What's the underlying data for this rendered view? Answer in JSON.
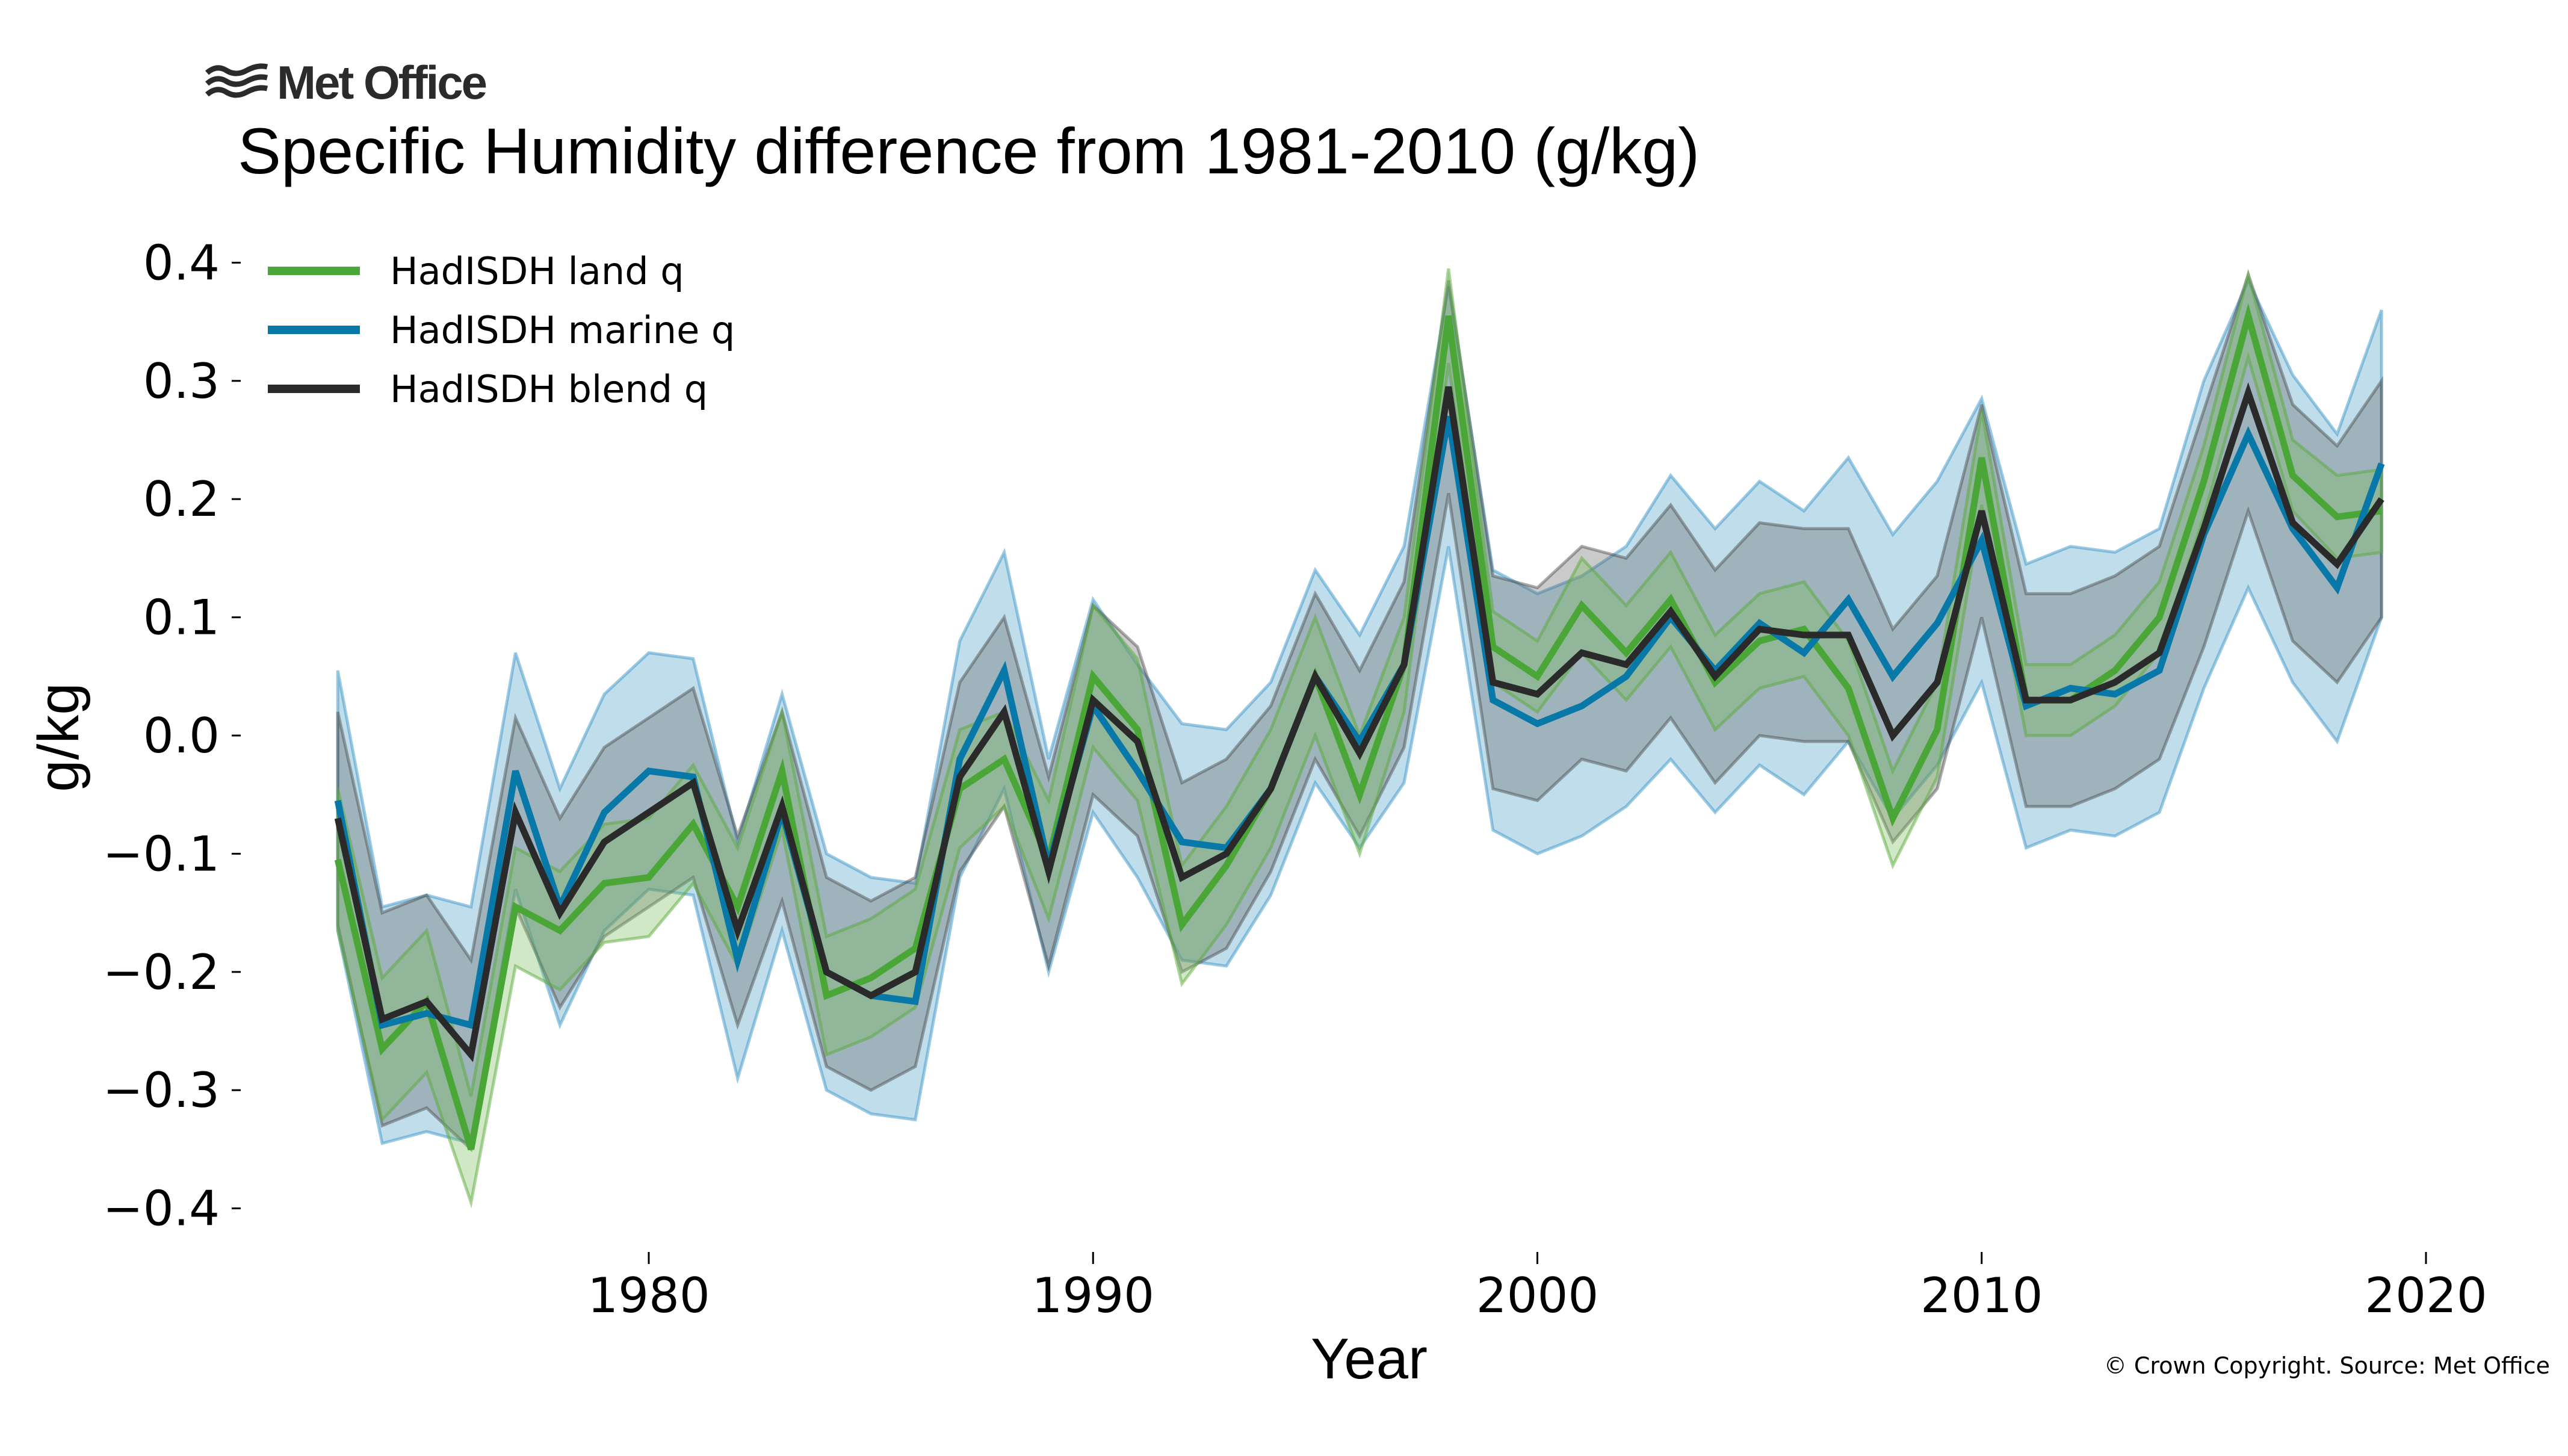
{
  "brand": {
    "name": "Met Office",
    "logo_icon": "met-office-waves-icon"
  },
  "copyright": "© Crown Copyright. Source: Met Office",
  "chart_data": {
    "type": "line",
    "title": "Specific Humidity difference from 1981-2010 (g/kg)",
    "xlabel": "Year",
    "ylabel": "g/kg",
    "xlim": [
      1971,
      2021.5
    ],
    "ylim": [
      -0.43,
      0.42
    ],
    "xticks": [
      1980,
      1990,
      2000,
      2010,
      2020
    ],
    "yticks": [
      0.4,
      0.3,
      0.2,
      0.1,
      0.0,
      -0.1,
      -0.2,
      -0.3,
      -0.4
    ],
    "ytick_labels": [
      "0.4",
      "0.3",
      "0.2",
      "0.1",
      "0.0",
      "−0.1",
      "−0.2",
      "−0.3",
      "−0.4"
    ],
    "grid": false,
    "legend_position": "top-left",
    "x": [
      1973,
      1974,
      1975,
      1976,
      1977,
      1978,
      1979,
      1980,
      1981,
      1982,
      1983,
      1984,
      1985,
      1986,
      1987,
      1988,
      1989,
      1990,
      1991,
      1992,
      1993,
      1994,
      1995,
      1996,
      1997,
      1998,
      1999,
      2000,
      2001,
      2002,
      2003,
      2004,
      2005,
      2006,
      2007,
      2008,
      2009,
      2010,
      2011,
      2012,
      2013,
      2014,
      2015,
      2016,
      2017,
      2018,
      2019
    ],
    "series": [
      {
        "name": "HadISDH land q",
        "color": "#4aa636",
        "values": [
          -0.105,
          -0.265,
          -0.225,
          -0.35,
          -0.145,
          -0.165,
          -0.125,
          -0.12,
          -0.075,
          -0.145,
          -0.03,
          -0.22,
          -0.205,
          -0.18,
          -0.045,
          -0.02,
          -0.105,
          0.05,
          0.005,
          -0.16,
          -0.11,
          -0.045,
          0.05,
          -0.05,
          0.06,
          0.355,
          0.075,
          0.05,
          0.11,
          0.07,
          0.115,
          0.045,
          0.08,
          0.09,
          0.04,
          -0.07,
          0.005,
          0.235,
          0.03,
          0.03,
          0.055,
          0.1,
          0.215,
          0.355,
          0.22,
          0.185,
          0.19
        ],
        "band_halfwidth": [
          0.06,
          0.06,
          0.06,
          0.045,
          0.05,
          0.05,
          0.05,
          0.05,
          0.05,
          0.05,
          0.05,
          0.05,
          0.05,
          0.05,
          0.05,
          0.04,
          0.05,
          0.06,
          0.06,
          0.05,
          0.05,
          0.05,
          0.05,
          0.05,
          0.04,
          0.04,
          0.03,
          0.03,
          0.04,
          0.04,
          0.04,
          0.04,
          0.04,
          0.04,
          0.04,
          0.04,
          0.04,
          0.04,
          0.03,
          0.03,
          0.03,
          0.03,
          0.03,
          0.035,
          0.03,
          0.035,
          0.035
        ]
      },
      {
        "name": "HadISDH marine q",
        "color": "#0878a8",
        "values": [
          -0.055,
          -0.245,
          -0.235,
          -0.245,
          -0.03,
          -0.145,
          -0.065,
          -0.03,
          -0.035,
          -0.19,
          -0.065,
          -0.2,
          -0.22,
          -0.225,
          -0.02,
          0.055,
          -0.11,
          0.025,
          -0.03,
          -0.09,
          -0.095,
          -0.045,
          0.05,
          -0.005,
          0.06,
          0.27,
          0.03,
          0.01,
          0.025,
          0.05,
          0.1,
          0.055,
          0.095,
          0.07,
          0.115,
          0.05,
          0.095,
          0.165,
          0.025,
          0.04,
          0.035,
          0.055,
          0.17,
          0.255,
          0.175,
          0.125,
          0.23
        ],
        "band_halfwidth": [
          0.11,
          0.1,
          0.1,
          0.1,
          0.1,
          0.1,
          0.1,
          0.1,
          0.1,
          0.1,
          0.1,
          0.1,
          0.1,
          0.1,
          0.1,
          0.1,
          0.09,
          0.09,
          0.09,
          0.1,
          0.1,
          0.09,
          0.09,
          0.09,
          0.1,
          0.11,
          0.11,
          0.11,
          0.11,
          0.11,
          0.12,
          0.12,
          0.12,
          0.12,
          0.12,
          0.12,
          0.12,
          0.12,
          0.12,
          0.12,
          0.12,
          0.12,
          0.13,
          0.13,
          0.13,
          0.13,
          0.13
        ]
      },
      {
        "name": "HadISDH blend q",
        "color": "#2a2a2a",
        "values": [
          -0.07,
          -0.24,
          -0.225,
          -0.27,
          -0.065,
          -0.15,
          -0.09,
          -0.065,
          -0.04,
          -0.165,
          -0.06,
          -0.2,
          -0.22,
          -0.2,
          -0.035,
          0.02,
          -0.115,
          0.03,
          -0.005,
          -0.12,
          -0.1,
          -0.045,
          0.05,
          -0.015,
          0.06,
          0.295,
          0.045,
          0.035,
          0.07,
          0.06,
          0.105,
          0.05,
          0.09,
          0.085,
          0.085,
          0.0,
          0.045,
          0.19,
          0.03,
          0.03,
          0.045,
          0.07,
          0.175,
          0.29,
          0.18,
          0.145,
          0.2
        ],
        "band_halfwidth": [
          0.09,
          0.09,
          0.09,
          0.08,
          0.08,
          0.08,
          0.08,
          0.08,
          0.08,
          0.08,
          0.08,
          0.08,
          0.08,
          0.08,
          0.08,
          0.08,
          0.08,
          0.08,
          0.08,
          0.08,
          0.08,
          0.07,
          0.07,
          0.07,
          0.07,
          0.09,
          0.09,
          0.09,
          0.09,
          0.09,
          0.09,
          0.09,
          0.09,
          0.09,
          0.09,
          0.09,
          0.09,
          0.09,
          0.09,
          0.09,
          0.09,
          0.09,
          0.1,
          0.1,
          0.1,
          0.1,
          0.1
        ]
      }
    ]
  }
}
